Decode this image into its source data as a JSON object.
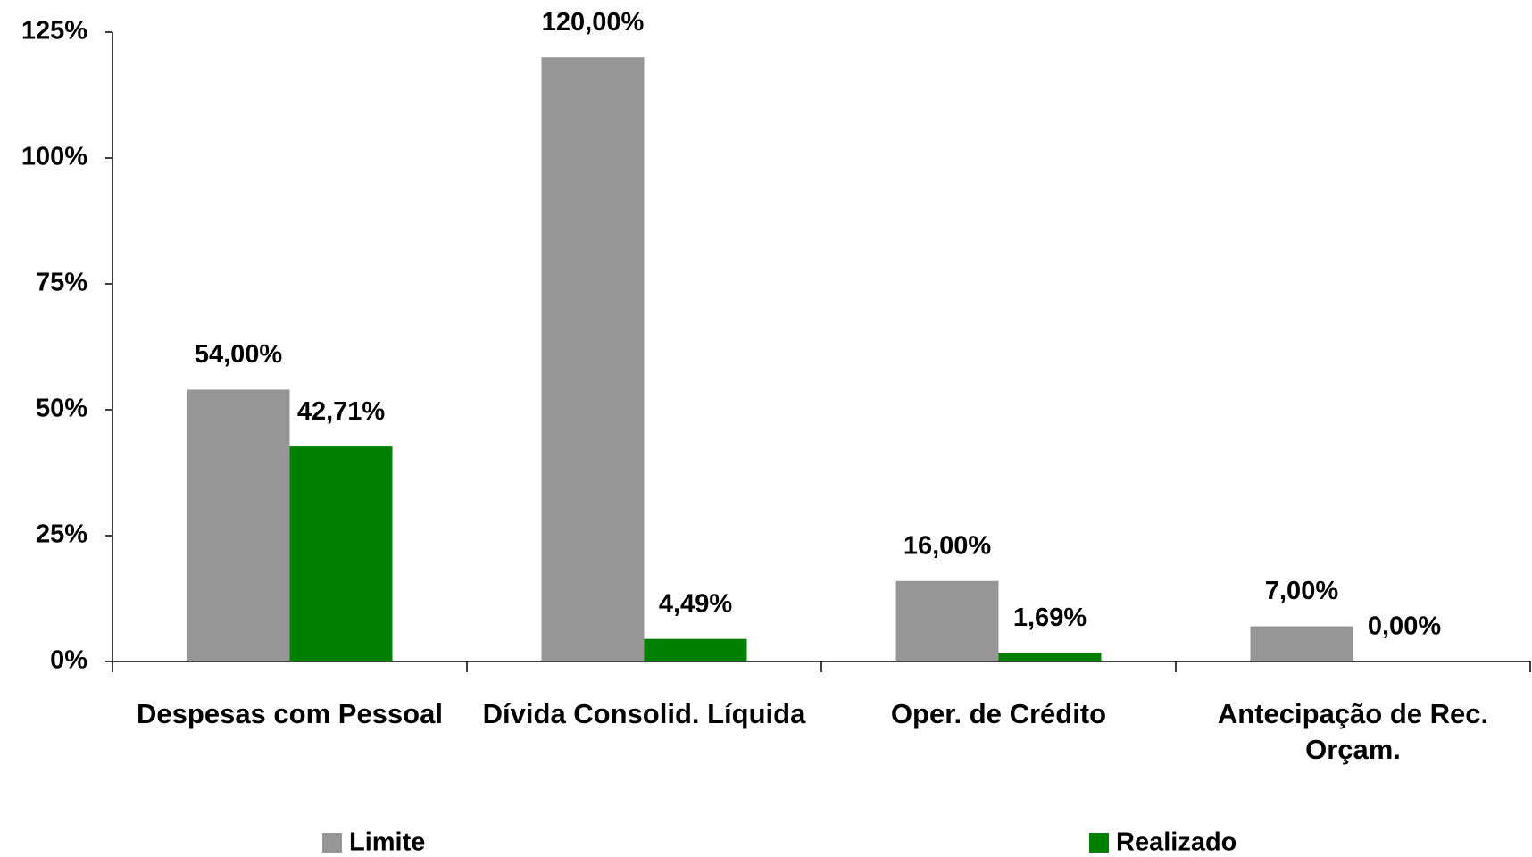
{
  "chart_data": {
    "type": "bar",
    "categories": [
      "Despesas com Pessoal",
      "Dívida Consolid. Líquida",
      "Oper. de Crédito",
      "Antecipação de Rec. Orçam."
    ],
    "series": [
      {
        "name": "Limite",
        "color": "#969696",
        "values": [
          54,
          120,
          16,
          7
        ],
        "value_labels": [
          "54,00%",
          "120,00%",
          "16,00%",
          "7,00%"
        ]
      },
      {
        "name": "Realizado",
        "color": "#008000",
        "values": [
          42.71,
          4.49,
          1.69,
          0
        ],
        "value_labels": [
          "42,71%",
          "4,49%",
          "1,69%",
          "0,00%"
        ]
      }
    ],
    "ylim": [
      0,
      125
    ],
    "yticks": [
      {
        "value": 0,
        "label": "0%"
      },
      {
        "value": 25,
        "label": "25%"
      },
      {
        "value": 50,
        "label": "50%"
      },
      {
        "value": 75,
        "label": "75%"
      },
      {
        "value": 100,
        "label": "100%"
      },
      {
        "value": 125,
        "label": "125%"
      }
    ],
    "grid": false
  }
}
